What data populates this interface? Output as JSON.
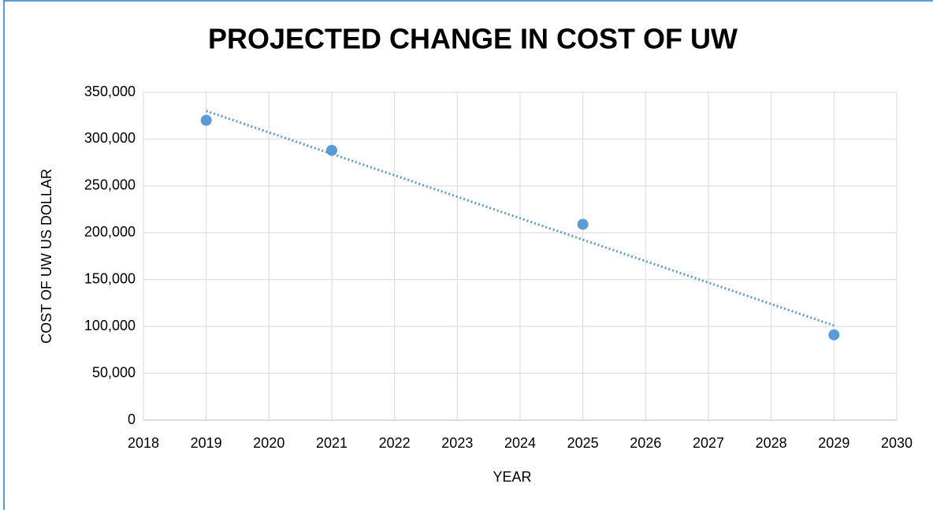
{
  "chart_data": {
    "type": "scatter",
    "title": "PROJECTED CHANGE IN COST OF UW",
    "x_label": "YEAR",
    "y_label": "COST OF UW US DOLLAR",
    "x": [
      2019,
      2021,
      2025,
      2029
    ],
    "values": [
      320000,
      288000,
      209000,
      91000
    ],
    "color": "#5b9bd5",
    "trendline": {
      "x": [
        2019,
        2029
      ],
      "values": [
        330000,
        101000
      ],
      "color": "#5b9bd5"
    },
    "xlim": [
      2018,
      2030
    ],
    "xticks": [
      2018,
      2019,
      2020,
      2021,
      2022,
      2023,
      2024,
      2025,
      2026,
      2027,
      2028,
      2029,
      2030
    ],
    "ylim": [
      0,
      350000
    ],
    "yticks": [
      0,
      {
        "value": 50000,
        "label": "50,000"
      },
      {
        "value": 100000,
        "label": "100,000"
      },
      {
        "value": 150000,
        "label": "150,000"
      },
      {
        "value": 200000,
        "label": "200,000"
      },
      {
        "value": 250000,
        "label": "250,000"
      },
      {
        "value": 300000,
        "label": "300,000"
      },
      {
        "value": 350000,
        "label": "350,000"
      }
    ],
    "grid": true
  }
}
